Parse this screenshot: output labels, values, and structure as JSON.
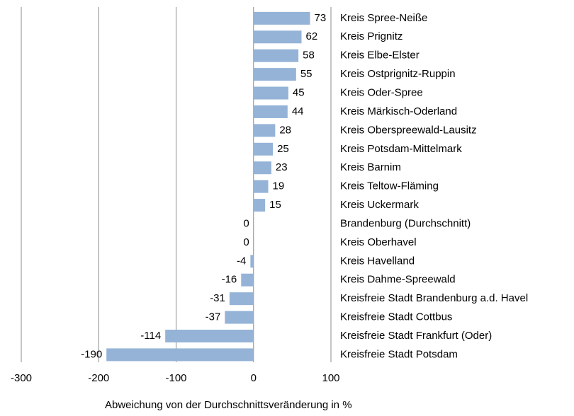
{
  "chart_data": {
    "type": "barh",
    "categories": [
      "Kreis Spree-Neiße",
      "Kreis Prignitz",
      "Kreis Elbe-Elster",
      "Kreis Ostprignitz-Ruppin",
      "Kreis Oder-Spree",
      "Kreis Märkisch-Oderland",
      "Kreis Oberspreewald-Lausitz",
      "Kreis Potsdam-Mittelmark",
      "Kreis Barnim",
      "Kreis Teltow-Fläming",
      "Kreis Uckermark",
      "Brandenburg (Durchschnitt)",
      "Kreis Oberhavel",
      "Kreis Havelland",
      "Kreis Dahme-Spreewald",
      "Kreisfreie Stadt Brandenburg a.d. Havel",
      "Kreisfreie Stadt Cottbus",
      "Kreisfreie Stadt Frankfurt (Oder)",
      "Kreisfreie Stadt Potsdam"
    ],
    "values": [
      73,
      62,
      58,
      55,
      45,
      44,
      28,
      25,
      23,
      19,
      15,
      0,
      0,
      -4,
      -16,
      -31,
      -37,
      -114,
      -190
    ],
    "color": "#95b3d7",
    "xlim": [
      -300,
      100
    ],
    "xticks": [
      -300,
      -200,
      -100,
      0,
      100
    ],
    "grid": true,
    "x_label": "Abweichung von der Durchschnittsveränderung in %"
  }
}
